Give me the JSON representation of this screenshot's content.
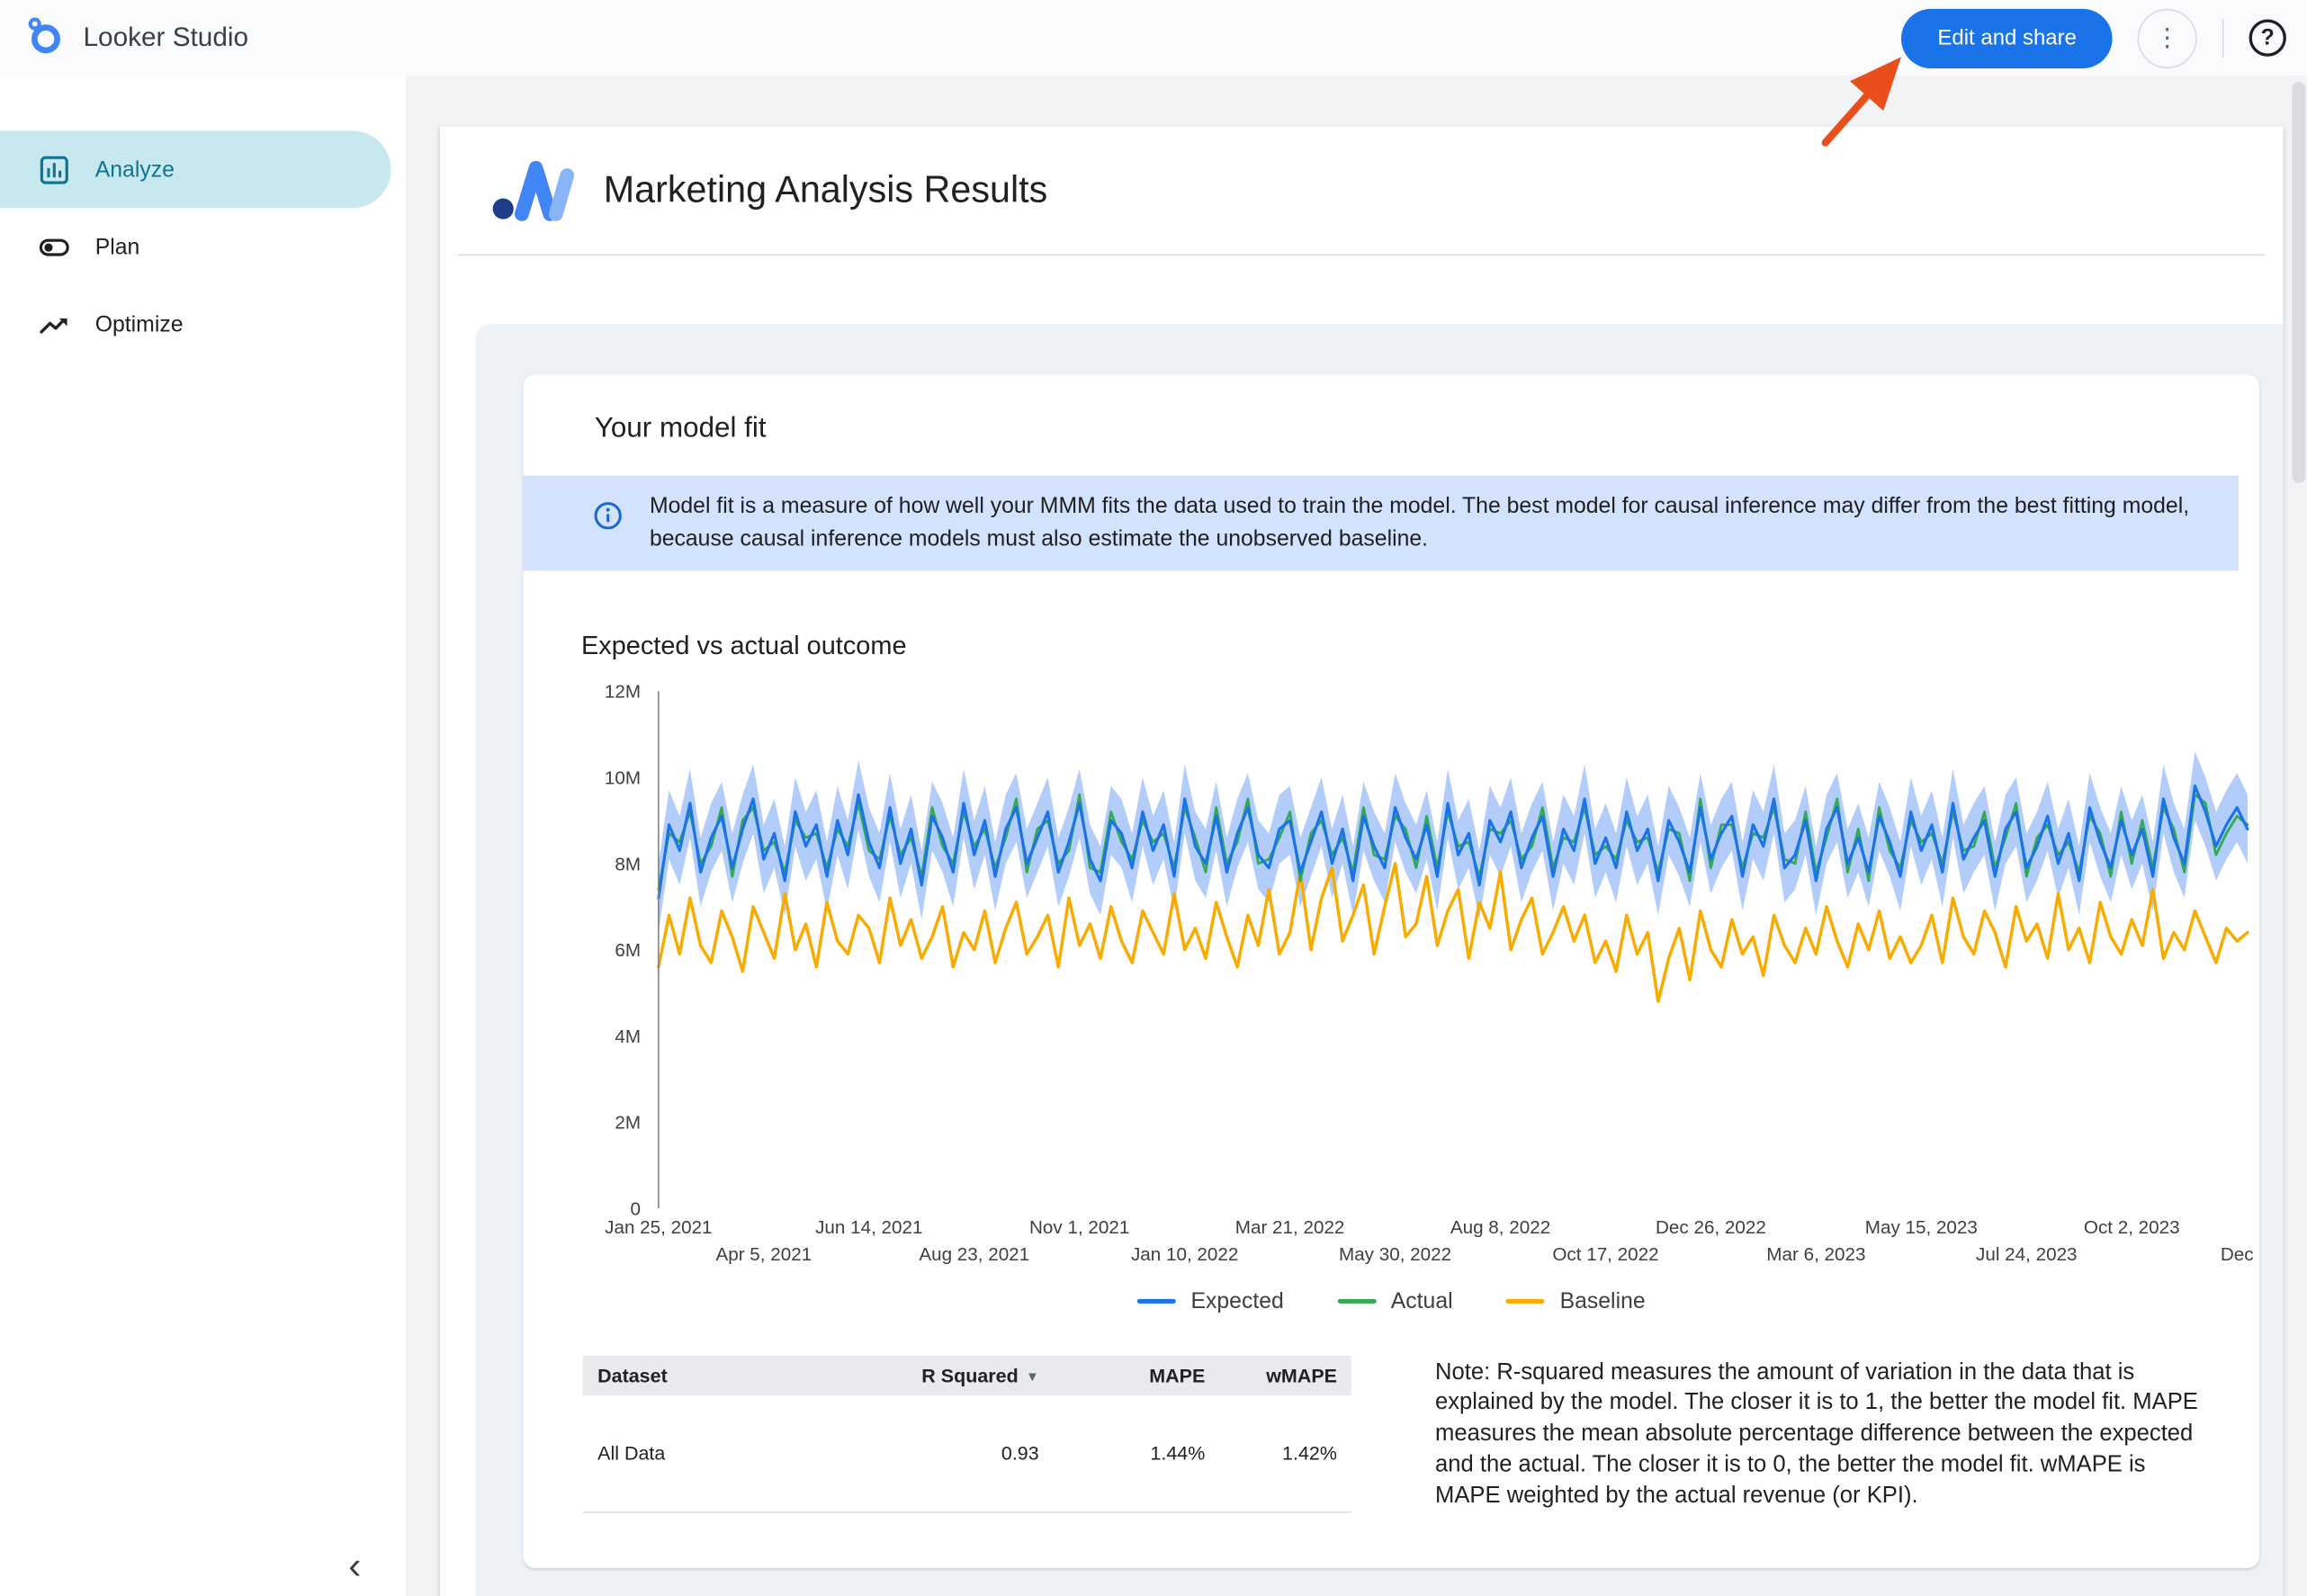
{
  "topbar": {
    "app_title": "Looker Studio",
    "edit_share_label": "Edit and share"
  },
  "icons": {
    "kebab_glyph": "⋮",
    "help_glyph": "?",
    "collapse_glyph": "‹",
    "sort_glyph": "▼"
  },
  "sidebar": {
    "items": [
      {
        "label": "Analyze",
        "active": true
      },
      {
        "label": "Plan",
        "active": false
      },
      {
        "label": "Optimize",
        "active": false
      }
    ]
  },
  "report": {
    "title": "Marketing Analysis Results",
    "card": {
      "title": "Your model fit",
      "info_banner": "Model fit is a measure of how well your MMM fits the data used to train the model. The best model for causal inference may differ from the best fitting model, because causal inference models must also estimate the unobserved baseline.",
      "chart_title": "Expected vs actual outcome"
    },
    "table": {
      "headers": [
        "Dataset",
        "R Squared",
        "MAPE",
        "wMAPE"
      ],
      "sorted_by": "R Squared",
      "rows": [
        [
          "All Data",
          "0.93",
          "1.44%",
          "1.42%"
        ]
      ]
    },
    "note": "Note: R-squared measures the amount of variation in the data that is explained by the model. The closer it is to 1, the better the model fit. MAPE measures the mean absolute percentage difference between the expected and the actual. The closer it is to 0, the better the model fit. wMAPE is MAPE weighted by the actual revenue (or KPI)."
  },
  "colors": {
    "accent_blue": "#1a73e8",
    "banner_bg": "#d3e3fd",
    "nav_active_bg": "#c6e8ee",
    "nav_active_text": "#0e7490",
    "annotation_arrow": "#e94e1b"
  },
  "chart_data": {
    "type": "line",
    "title": "Expected vs actual outcome",
    "x_unit": "week",
    "x_tick_labels": [
      "Jan 25, 2021",
      "Apr 5, 2021",
      "Jun 14, 2021",
      "Aug 23, 2021",
      "Nov 1, 2021",
      "Jan 10, 2022",
      "Mar 21, 2022",
      "May 30, 2022",
      "Aug 8, 2022",
      "Oct 17, 2022",
      "Dec 26, 2022",
      "Mar 6, 2023",
      "May 15, 2023",
      "Jul 24, 2023",
      "Oct 2, 2023",
      "Dec"
    ],
    "x_ticks_every_n_points": 10,
    "y_tick_labels": [
      "0",
      "2M",
      "4M",
      "6M",
      "8M",
      "10M",
      "12M"
    ],
    "ylim": [
      0,
      12
    ],
    "y_unit": "M",
    "grid": false,
    "legend_position": "bottom",
    "band_halfwidth": 0.8,
    "colors": {
      "expected": "#1a73e8",
      "actual": "#34a853",
      "baseline": "#f9ab00",
      "band": "#a4c4f8"
    },
    "series": [
      {
        "name": "Expected",
        "values": [
          7.2,
          8.9,
          8.3,
          9.4,
          7.8,
          8.6,
          9.1,
          7.9,
          8.8,
          9.5,
          8.1,
          8.7,
          7.6,
          9.2,
          8.4,
          8.9,
          7.7,
          9.0,
          8.2,
          9.6,
          8.5,
          7.9,
          9.3,
          8.0,
          8.8,
          7.5,
          9.1,
          8.6,
          7.8,
          9.4,
          8.2,
          9.0,
          7.7,
          8.8,
          9.3,
          8.0,
          8.6,
          9.2,
          7.8,
          8.5,
          9.4,
          8.1,
          7.6,
          9.0,
          8.7,
          7.9,
          9.2,
          8.3,
          8.9,
          7.7,
          9.5,
          8.4,
          8.0,
          9.1,
          7.8,
          8.7,
          9.3,
          8.2,
          7.9,
          8.8,
          9.0,
          7.8,
          8.5,
          9.2,
          8.0,
          8.8,
          7.6,
          9.1,
          8.4,
          7.9,
          9.3,
          8.6,
          8.1,
          8.9,
          7.7,
          9.4,
          8.2,
          8.7,
          7.5,
          9.0,
          8.5,
          9.2,
          7.9,
          8.6,
          9.1,
          7.7,
          8.8,
          8.3,
          9.5,
          8.0,
          8.6,
          7.9,
          9.2,
          8.3,
          8.8,
          7.6,
          9.0,
          8.5,
          7.8,
          9.3,
          8.1,
          8.7,
          9.1,
          7.7,
          8.9,
          8.4,
          9.5,
          7.9,
          8.2,
          9.0,
          7.6,
          8.8,
          9.3,
          8.0,
          8.6,
          7.8,
          9.1,
          8.5,
          7.7,
          9.2,
          8.3,
          8.9,
          7.8,
          9.4,
          8.1,
          8.6,
          9.0,
          7.7,
          8.8,
          9.2,
          7.9,
          8.4,
          9.1,
          8.0,
          8.7,
          7.6,
          9.3,
          8.5,
          7.9,
          9.0,
          8.2,
          8.8,
          7.7,
          9.5,
          8.6,
          8.0,
          9.8,
          9.2,
          8.4,
          8.9,
          9.3,
          8.8
        ]
      },
      {
        "name": "Actual",
        "values": [
          7.4,
          8.7,
          8.5,
          9.2,
          8.0,
          8.4,
          9.3,
          7.7,
          9.0,
          9.3,
          8.3,
          8.5,
          7.8,
          9.0,
          8.6,
          8.7,
          7.9,
          8.8,
          8.4,
          9.4,
          8.3,
          8.1,
          9.1,
          8.2,
          8.6,
          7.7,
          9.3,
          8.4,
          8.0,
          9.2,
          8.4,
          8.8,
          7.9,
          8.6,
          9.5,
          7.8,
          8.8,
          9.0,
          8.0,
          8.3,
          9.6,
          7.9,
          7.8,
          9.2,
          8.5,
          8.1,
          9.0,
          8.5,
          8.7,
          7.9,
          9.3,
          8.6,
          7.8,
          9.3,
          8.0,
          8.5,
          9.5,
          8.0,
          8.1,
          8.6,
          9.2,
          7.6,
          8.7,
          9.0,
          8.2,
          8.6,
          7.8,
          9.3,
          8.2,
          8.1,
          9.1,
          8.8,
          7.9,
          9.1,
          7.9,
          9.2,
          8.4,
          8.5,
          7.7,
          8.8,
          8.7,
          9.0,
          8.1,
          8.4,
          9.3,
          7.9,
          8.6,
          8.5,
          9.3,
          8.2,
          8.4,
          8.1,
          9.0,
          8.5,
          8.6,
          7.8,
          8.8,
          8.7,
          7.6,
          9.5,
          7.9,
          8.9,
          8.9,
          7.9,
          8.7,
          8.6,
          9.3,
          8.1,
          8.0,
          9.2,
          7.8,
          8.6,
          9.5,
          7.8,
          8.8,
          7.6,
          9.3,
          8.3,
          7.9,
          9.0,
          8.5,
          8.7,
          8.0,
          9.2,
          8.3,
          8.4,
          9.2,
          7.9,
          8.6,
          9.4,
          7.7,
          8.6,
          8.9,
          8.2,
          8.5,
          7.8,
          9.1,
          8.7,
          7.7,
          9.2,
          8.0,
          9.0,
          7.9,
          9.3,
          8.8,
          7.8,
          9.6,
          9.4,
          8.2,
          8.7,
          9.1,
          8.9
        ]
      },
      {
        "name": "Baseline",
        "values": [
          5.6,
          6.8,
          5.9,
          7.2,
          6.1,
          5.7,
          6.9,
          6.3,
          5.5,
          7.0,
          6.4,
          5.8,
          7.3,
          6.0,
          6.6,
          5.6,
          7.1,
          6.2,
          5.9,
          6.8,
          6.5,
          5.7,
          7.2,
          6.1,
          6.7,
          5.8,
          6.3,
          7.0,
          5.6,
          6.4,
          6.0,
          6.9,
          5.7,
          6.5,
          7.1,
          5.9,
          6.3,
          6.8,
          5.6,
          7.2,
          6.1,
          6.6,
          5.8,
          7.0,
          6.2,
          5.7,
          6.9,
          6.4,
          5.9,
          7.3,
          6.0,
          6.5,
          5.8,
          7.1,
          6.3,
          5.6,
          6.8,
          6.1,
          7.4,
          5.9,
          6.4,
          7.8,
          6.0,
          7.2,
          7.9,
          6.2,
          6.8,
          7.5,
          5.9,
          7.0,
          8.0,
          6.3,
          6.6,
          7.7,
          6.1,
          6.9,
          7.4,
          5.8,
          7.1,
          6.5,
          7.8,
          6.0,
          6.7,
          7.2,
          5.9,
          6.4,
          7.0,
          6.2,
          6.8,
          5.7,
          6.2,
          5.5,
          6.8,
          5.9,
          6.4,
          4.8,
          5.8,
          6.5,
          5.3,
          6.9,
          6.0,
          5.6,
          6.7,
          5.9,
          6.3,
          5.4,
          6.8,
          6.1,
          5.7,
          6.5,
          5.9,
          7.0,
          6.2,
          5.6,
          6.6,
          6.0,
          6.9,
          5.8,
          6.3,
          5.7,
          6.1,
          6.8,
          5.7,
          7.2,
          6.3,
          5.9,
          6.9,
          6.4,
          5.6,
          7.0,
          6.2,
          6.6,
          5.8,
          7.3,
          6.0,
          6.5,
          5.7,
          7.1,
          6.3,
          5.9,
          6.7,
          6.1,
          7.4,
          5.8,
          6.4,
          6.0,
          6.9,
          6.3,
          5.7,
          6.5,
          6.2,
          6.4
        ]
      }
    ]
  }
}
